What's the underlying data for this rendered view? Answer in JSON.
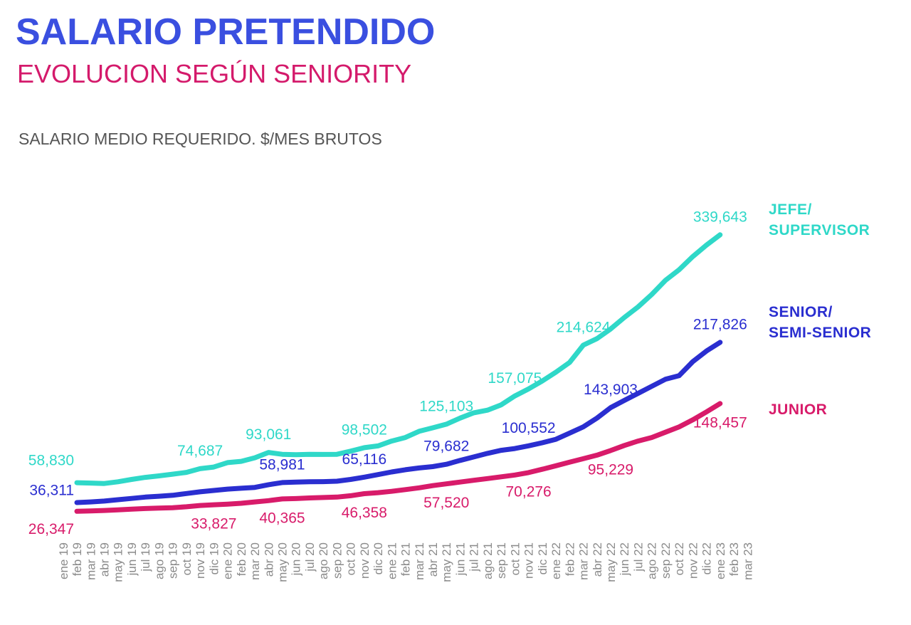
{
  "chart_data": {
    "type": "line",
    "title": "SALARIO PRETENDIDO",
    "subtitle": "EVOLUCION SEGÚN SENIORITY",
    "y_label": "SALARIO MEDIO REQUERIDO. $/MES BRUTOS",
    "categories": [
      "ene 19",
      "feb 19",
      "mar 19",
      "abr 19",
      "may 19",
      "jun 19",
      "jul 19",
      "ago 19",
      "sep 19",
      "oct 19",
      "nov 19",
      "dic 19",
      "ene 20",
      "feb 20",
      "mar 20",
      "abr 20",
      "may 20",
      "jun 20",
      "jul 20",
      "ago 20",
      "sep 20",
      "oct 20",
      "nov 20",
      "dic 20",
      "ene 21",
      "feb 21",
      "mar 21",
      "abr 21",
      "may 21",
      "jun 21",
      "jul 21",
      "ago 21",
      "sep 21",
      "oct 21",
      "nov 21",
      "dic 21",
      "ene 22",
      "feb 22",
      "mar 22",
      "abr 22",
      "may 22",
      "jun 22",
      "jul 22",
      "ago 22",
      "sep 22",
      "oct 22",
      "nov 22",
      "dic 22",
      "ene 23",
      "feb 23",
      "mar 23"
    ],
    "series": [
      {
        "name": "JEFE/\nSUPERVISOR",
        "color": "#2fd8c8",
        "values": [
          null,
          58830,
          58400,
          57900,
          59800,
          62500,
          64800,
          66500,
          68500,
          70500,
          74687,
          76500,
          81500,
          83000,
          87000,
          93061,
          91000,
          90500,
          91000,
          90800,
          91000,
          94500,
          98502,
          100500,
          106000,
          110000,
          117000,
          121000,
          125103,
          132000,
          138000,
          141000,
          147000,
          157075,
          165000,
          174000,
          184000,
          195000,
          214624,
          222000,
          233000,
          246000,
          258000,
          272000,
          288000,
          300000,
          315000,
          328000,
          339643,
          null,
          null
        ],
        "value_labels": [
          null,
          "58,830",
          null,
          null,
          null,
          null,
          null,
          null,
          null,
          null,
          "74,687",
          null,
          null,
          null,
          null,
          "93,061",
          null,
          null,
          null,
          null,
          null,
          null,
          "98,502",
          null,
          null,
          null,
          null,
          null,
          "125,103",
          null,
          null,
          null,
          null,
          "157,075",
          null,
          null,
          null,
          null,
          "214,624",
          null,
          null,
          null,
          null,
          null,
          null,
          null,
          null,
          null,
          "339,643",
          null,
          null
        ]
      },
      {
        "name": "SENIOR/\nSEMI-SENIOR",
        "color": "#2a2ed0",
        "values": [
          null,
          36311,
          37000,
          38000,
          39500,
          41000,
          42500,
          43500,
          44500,
          46500,
          48500,
          50000,
          51500,
          52500,
          53500,
          56500,
          58981,
          59500,
          59800,
          60000,
          60500,
          62500,
          65116,
          68000,
          71000,
          73500,
          75500,
          77000,
          79682,
          84000,
          88000,
          92000,
          95500,
          97500,
          100552,
          104000,
          108000,
          115000,
          122000,
          132000,
          143903,
          152000,
          160000,
          168000,
          176000,
          180000,
          196000,
          208000,
          217826,
          null,
          null
        ],
        "value_labels": [
          null,
          "36,311",
          null,
          null,
          null,
          null,
          null,
          null,
          null,
          null,
          null,
          null,
          null,
          null,
          null,
          null,
          "58,981",
          null,
          null,
          null,
          null,
          null,
          "65,116",
          null,
          null,
          null,
          null,
          null,
          "79,682",
          null,
          null,
          null,
          null,
          null,
          "100,552",
          null,
          null,
          null,
          null,
          null,
          "143,903",
          null,
          null,
          null,
          null,
          null,
          null,
          null,
          "217,826",
          null,
          null
        ]
      },
      {
        "name": "JUNIOR",
        "color": "#d81b6a",
        "values": [
          null,
          26347,
          26800,
          27300,
          28000,
          28800,
          29500,
          30000,
          30500,
          31500,
          33000,
          33827,
          34500,
          35500,
          37000,
          38500,
          40365,
          40800,
          41500,
          42000,
          42500,
          44000,
          46358,
          47500,
          49000,
          51000,
          53000,
          55500,
          57520,
          59500,
          61500,
          63500,
          65500,
          67500,
          70276,
          74000,
          78000,
          82000,
          86000,
          90000,
          95229,
          101000,
          106000,
          110000,
          116000,
          122000,
          130000,
          139000,
          148457,
          null,
          null
        ],
        "value_labels": [
          null,
          "26,347",
          null,
          null,
          null,
          null,
          null,
          null,
          null,
          null,
          null,
          "33,827",
          null,
          null,
          null,
          null,
          "40,365",
          null,
          null,
          null,
          null,
          null,
          "46,358",
          null,
          null,
          null,
          null,
          null,
          "57,520",
          null,
          null,
          null,
          null,
          null,
          "70,276",
          null,
          null,
          null,
          null,
          null,
          "95,229",
          null,
          null,
          null,
          null,
          null,
          null,
          null,
          "148,457",
          null,
          null
        ]
      }
    ]
  }
}
